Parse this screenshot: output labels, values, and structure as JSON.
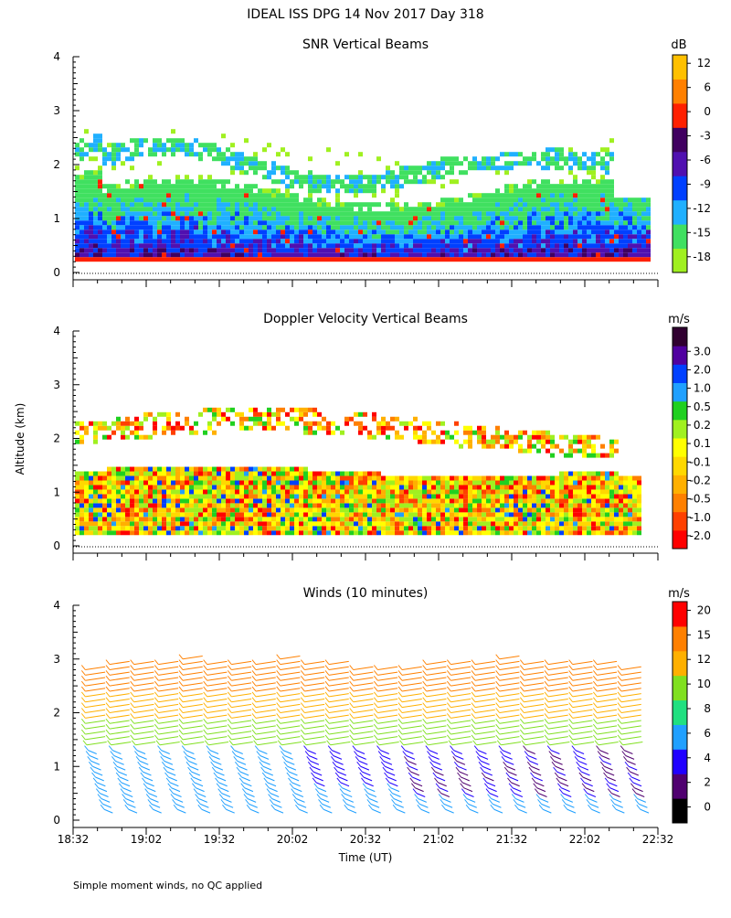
{
  "title": "IDEAL ISS DPG  14 Nov 2017 Day 318",
  "ylabel": "Altitude (km)",
  "xlabel": "Time (UT)",
  "footnote": "Simple moment winds, no QC applied",
  "chart_data": [
    {
      "type": "heatmap",
      "title": "SNR Vertical Beams",
      "colorbar_unit": "dB",
      "colorbar_ticks": [
        "-18",
        "-15",
        "-12",
        "-9",
        "-6",
        "-3",
        "0",
        "6",
        "12"
      ],
      "colorbar_colors": [
        "#a0f020",
        "#40e060",
        "#20b0ff",
        "#0040ff",
        "#5010b0",
        "#400060",
        "#ff2000",
        "#ff8000",
        "#ffc000"
      ],
      "ylim": [
        0,
        4
      ],
      "yticks": [
        "0",
        "1",
        "2",
        "3",
        "4"
      ],
      "xlim": [
        "18:32",
        "22:32"
      ]
    },
    {
      "type": "heatmap",
      "title": "Doppler Velocity Vertical Beams",
      "colorbar_unit": "m/s",
      "colorbar_ticks": [
        "-2.0",
        "-1.0",
        "-0.5",
        "-0.2",
        "-0.1",
        "0.1",
        "0.2",
        "0.5",
        "1.0",
        "2.0",
        "3.0"
      ],
      "colorbar_colors": [
        "#ff0000",
        "#ff4000",
        "#ff8000",
        "#ffb000",
        "#ffd800",
        "#ffff00",
        "#a0f020",
        "#20d020",
        "#20a0ff",
        "#0040ff",
        "#5000a0",
        "#300030"
      ],
      "ylim": [
        0,
        4
      ],
      "yticks": [
        "0",
        "1",
        "2",
        "3",
        "4"
      ],
      "xlim": [
        "18:32",
        "22:32"
      ]
    },
    {
      "type": "wind-barbs",
      "title": "Winds (10 minutes)",
      "colorbar_unit": "m/s",
      "colorbar_ticks": [
        "0",
        "2",
        "4",
        "6",
        "8",
        "10",
        "12",
        "15",
        "20"
      ],
      "colorbar_colors": [
        "#000000",
        "#500070",
        "#2000ff",
        "#20a0ff",
        "#20e080",
        "#80e020",
        "#ffb000",
        "#ff8000",
        "#ff0000"
      ],
      "ylim": [
        0,
        4
      ],
      "yticks": [
        "0",
        "1",
        "2",
        "3",
        "4"
      ],
      "xticks": [
        "18:32",
        "19:02",
        "19:32",
        "20:02",
        "20:32",
        "21:02",
        "21:32",
        "22:02",
        "22:32"
      ],
      "xlim": [
        "18:32",
        "22:32"
      ]
    }
  ]
}
